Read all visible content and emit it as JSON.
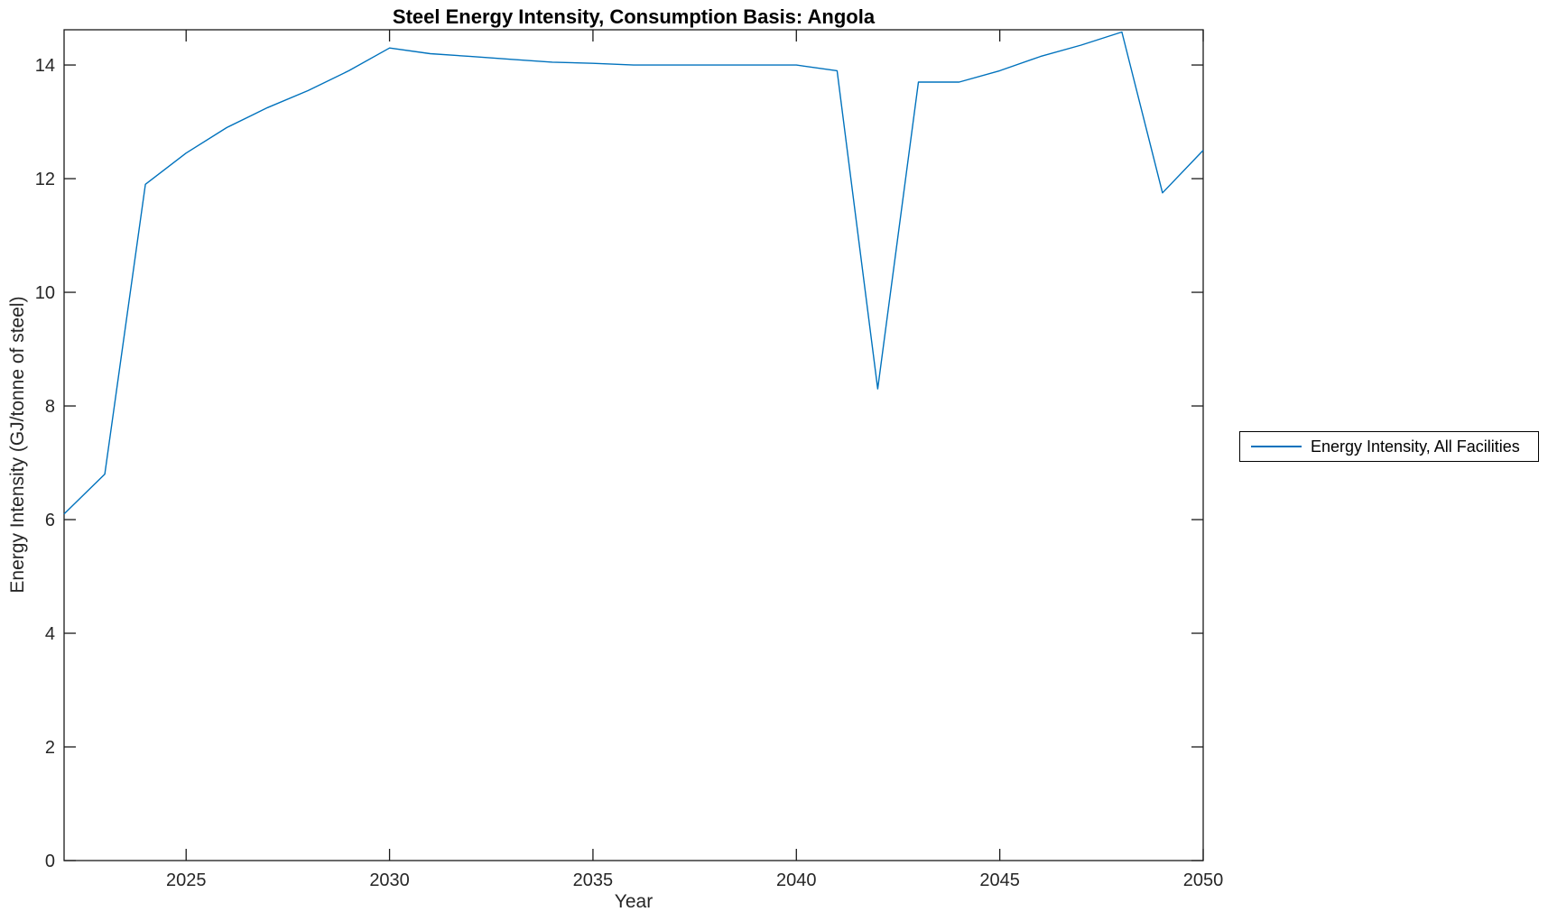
{
  "figure": {
    "background": "#ffffff"
  },
  "chart_data": {
    "type": "line",
    "title": "Steel Energy Intensity, Consumption Basis: Angola",
    "xlabel": "Year",
    "ylabel": "Energy Intensity (GJ/tonne of steel)",
    "legend": {
      "position": "eastoutside",
      "entries": [
        "Energy Intensity, All Facilities"
      ]
    },
    "series": [
      {
        "name": "Energy Intensity, All Facilities",
        "color": "#0072BD",
        "x": [
          2022,
          2023,
          2024,
          2025,
          2026,
          2027,
          2028,
          2029,
          2030,
          2031,
          2032,
          2033,
          2034,
          2035,
          2036,
          2037,
          2038,
          2039,
          2040,
          2041,
          2042,
          2043,
          2044,
          2045,
          2046,
          2047,
          2048,
          2049,
          2050
        ],
        "values": [
          6.1,
          6.8,
          11.9,
          12.45,
          12.9,
          13.25,
          13.55,
          13.9,
          14.3,
          14.2,
          14.15,
          14.1,
          14.05,
          14.03,
          14.0,
          14.0,
          14.0,
          14.0,
          14.0,
          13.9,
          8.3,
          13.7,
          13.7,
          13.9,
          14.15,
          14.35,
          14.58,
          11.75,
          12.5
        ]
      }
    ],
    "xlim": [
      2022,
      2050
    ],
    "ylim": [
      0,
      14.62
    ],
    "xticks": [
      2025,
      2030,
      2035,
      2040,
      2045,
      2050
    ],
    "yticks": [
      0,
      2,
      4,
      6,
      8,
      10,
      12,
      14
    ],
    "grid": false,
    "box": true,
    "tick_direction": "in",
    "axis_color": "#1a1a1a",
    "text_color": "#262626"
  }
}
